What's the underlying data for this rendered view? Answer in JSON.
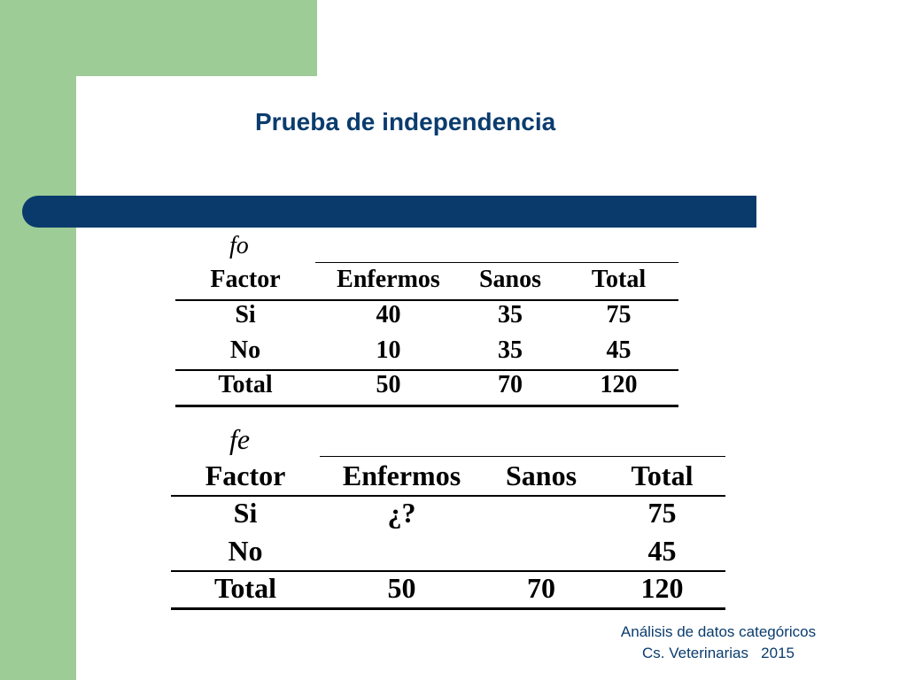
{
  "slide": {
    "title": "Prueba de independencia",
    "colors": {
      "green": "#9dcc96",
      "navy": "#0a3a6c",
      "title": "#0a3c6e"
    }
  },
  "table_observed": {
    "label": "fo",
    "headers": [
      "Factor",
      "Enfermos",
      "Sanos",
      "Total"
    ],
    "rows": [
      [
        "Si",
        "40",
        "35",
        "75"
      ],
      [
        "No",
        "10",
        "35",
        "45"
      ]
    ],
    "total_row": [
      "Total",
      "50",
      "70",
      "120"
    ]
  },
  "table_expected": {
    "label": "fe",
    "headers": [
      "Factor",
      "Enfermos",
      "Sanos",
      "Total"
    ],
    "rows": [
      [
        "Si",
        "¿?",
        "",
        "75"
      ],
      [
        "No",
        "",
        "",
        "45"
      ]
    ],
    "total_row": [
      "Total",
      "50",
      "70",
      "120"
    ]
  },
  "footer": {
    "line1": "Análisis de datos categóricos",
    "line2": "Cs. Veterinarias   2015"
  }
}
